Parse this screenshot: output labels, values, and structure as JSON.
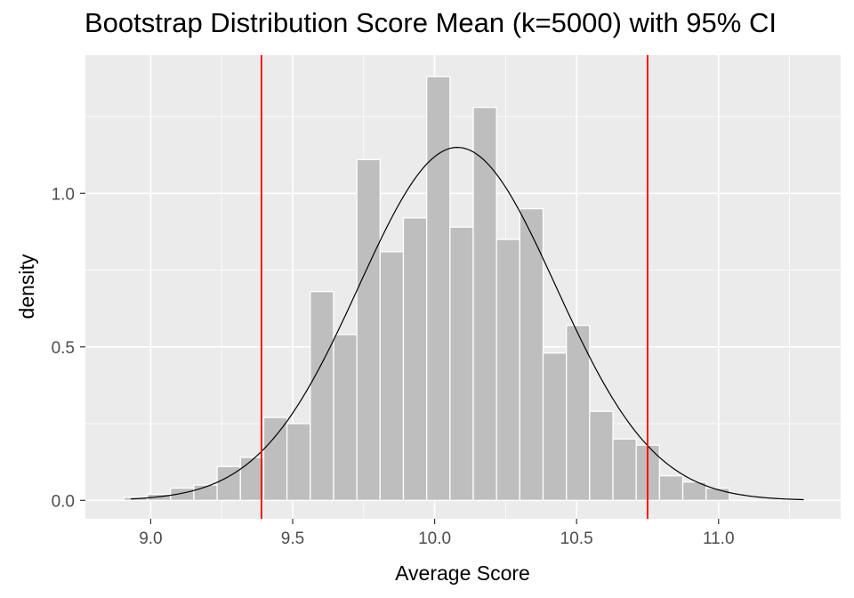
{
  "chart_data": {
    "type": "bar",
    "title": "Bootstrap Distribution Score Mean (k=5000) with 95% CI",
    "xlabel": "Average Score",
    "ylabel": "density",
    "xlim": [
      8.77,
      11.43
    ],
    "ylim": [
      -0.06,
      1.45
    ],
    "x_ticks": [
      9.0,
      9.5,
      10.0,
      10.5,
      11.0
    ],
    "x_tick_labels": [
      "9.0",
      "9.5",
      "10.0",
      "10.5",
      "11.0"
    ],
    "y_ticks": [
      0.0,
      0.5,
      1.0
    ],
    "y_tick_labels": [
      "0.0",
      "0.5",
      "1.0"
    ],
    "grid": true,
    "histogram": {
      "bin_width": 0.082,
      "bin_starts": [
        8.824,
        8.906,
        8.988,
        9.07,
        9.152,
        9.234,
        9.316,
        9.398,
        9.48,
        9.562,
        9.644,
        9.726,
        9.808,
        9.89,
        9.972,
        10.054,
        10.136,
        10.218,
        10.3,
        10.382,
        10.464,
        10.546,
        10.628,
        10.71,
        10.792,
        10.874,
        10.956,
        11.038
      ],
      "density": [
        0.0,
        0.01,
        0.02,
        0.04,
        0.05,
        0.11,
        0.14,
        0.27,
        0.25,
        0.68,
        0.54,
        1.11,
        0.81,
        0.92,
        1.38,
        0.89,
        1.28,
        0.85,
        0.95,
        0.48,
        0.57,
        0.29,
        0.2,
        0.18,
        0.08,
        0.06,
        0.04,
        0.0
      ],
      "fill": "#bebebe",
      "stroke": "#ffffff"
    },
    "normal_curve": {
      "mean": 10.08,
      "sd": 0.347,
      "x_range": [
        8.93,
        11.3
      ],
      "color": "#000000"
    },
    "ci_lines": {
      "values": [
        9.39,
        10.75
      ],
      "color": "#ff0000"
    },
    "panel_background": "#ebebeb"
  }
}
